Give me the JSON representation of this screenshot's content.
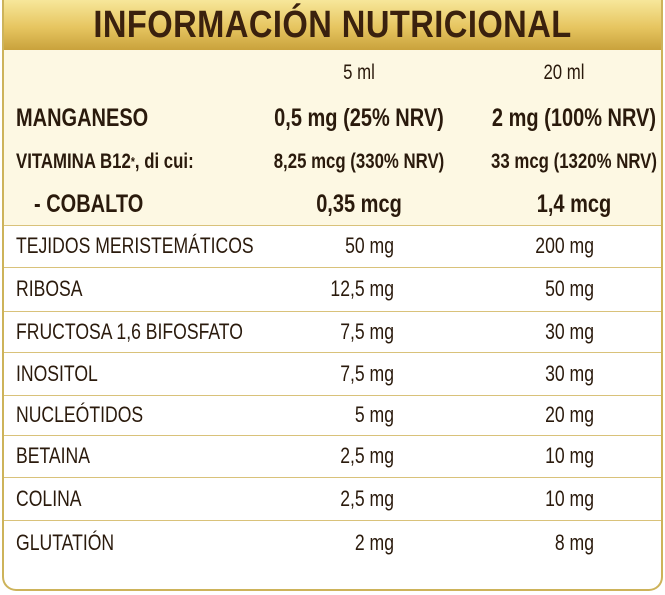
{
  "header": {
    "title": "INFORMACIÓN NUTRICIONAL"
  },
  "table": {
    "columns": [
      "5 ml",
      "20 ml"
    ],
    "rows": [
      {
        "name": "MANGANESO",
        "values": [
          "0,5 mg (25% NRV)",
          "2 mg (100% NRV)"
        ]
      },
      {
        "name": "VITAMINA B12",
        "name_sup": "*",
        "name_suffix": ", di cui:",
        "values": [
          "8,25 mcg (330% NRV)",
          "33 mcg (1320% NRV)"
        ]
      },
      {
        "name": "- COBALTO",
        "values": [
          "0,35 mcg",
          "1,4 mcg"
        ]
      },
      {
        "name": "TEJIDOS MERISTEMÁTICOS",
        "values": [
          "50 mg",
          "200 mg"
        ]
      },
      {
        "name": "RIBOSA",
        "values": [
          "12,5 mg",
          "50 mg"
        ]
      },
      {
        "name": "FRUCTOSA 1,6 BIFOSFATO",
        "values": [
          "7,5 mg",
          "30 mg"
        ]
      },
      {
        "name": "INOSITOL",
        "values": [
          "7,5 mg",
          "30 mg"
        ]
      },
      {
        "name": "NUCLEÓTIDOS",
        "values": [
          "5 mg",
          "20 mg"
        ]
      },
      {
        "name": "BETAINA",
        "values": [
          "2,5 mg",
          "10 mg"
        ]
      },
      {
        "name": "COLINA",
        "values": [
          "2,5 mg",
          "10 mg"
        ]
      },
      {
        "name": "GLUTATIÓN",
        "values": [
          "2 mg",
          "8 mg"
        ]
      }
    ]
  }
}
